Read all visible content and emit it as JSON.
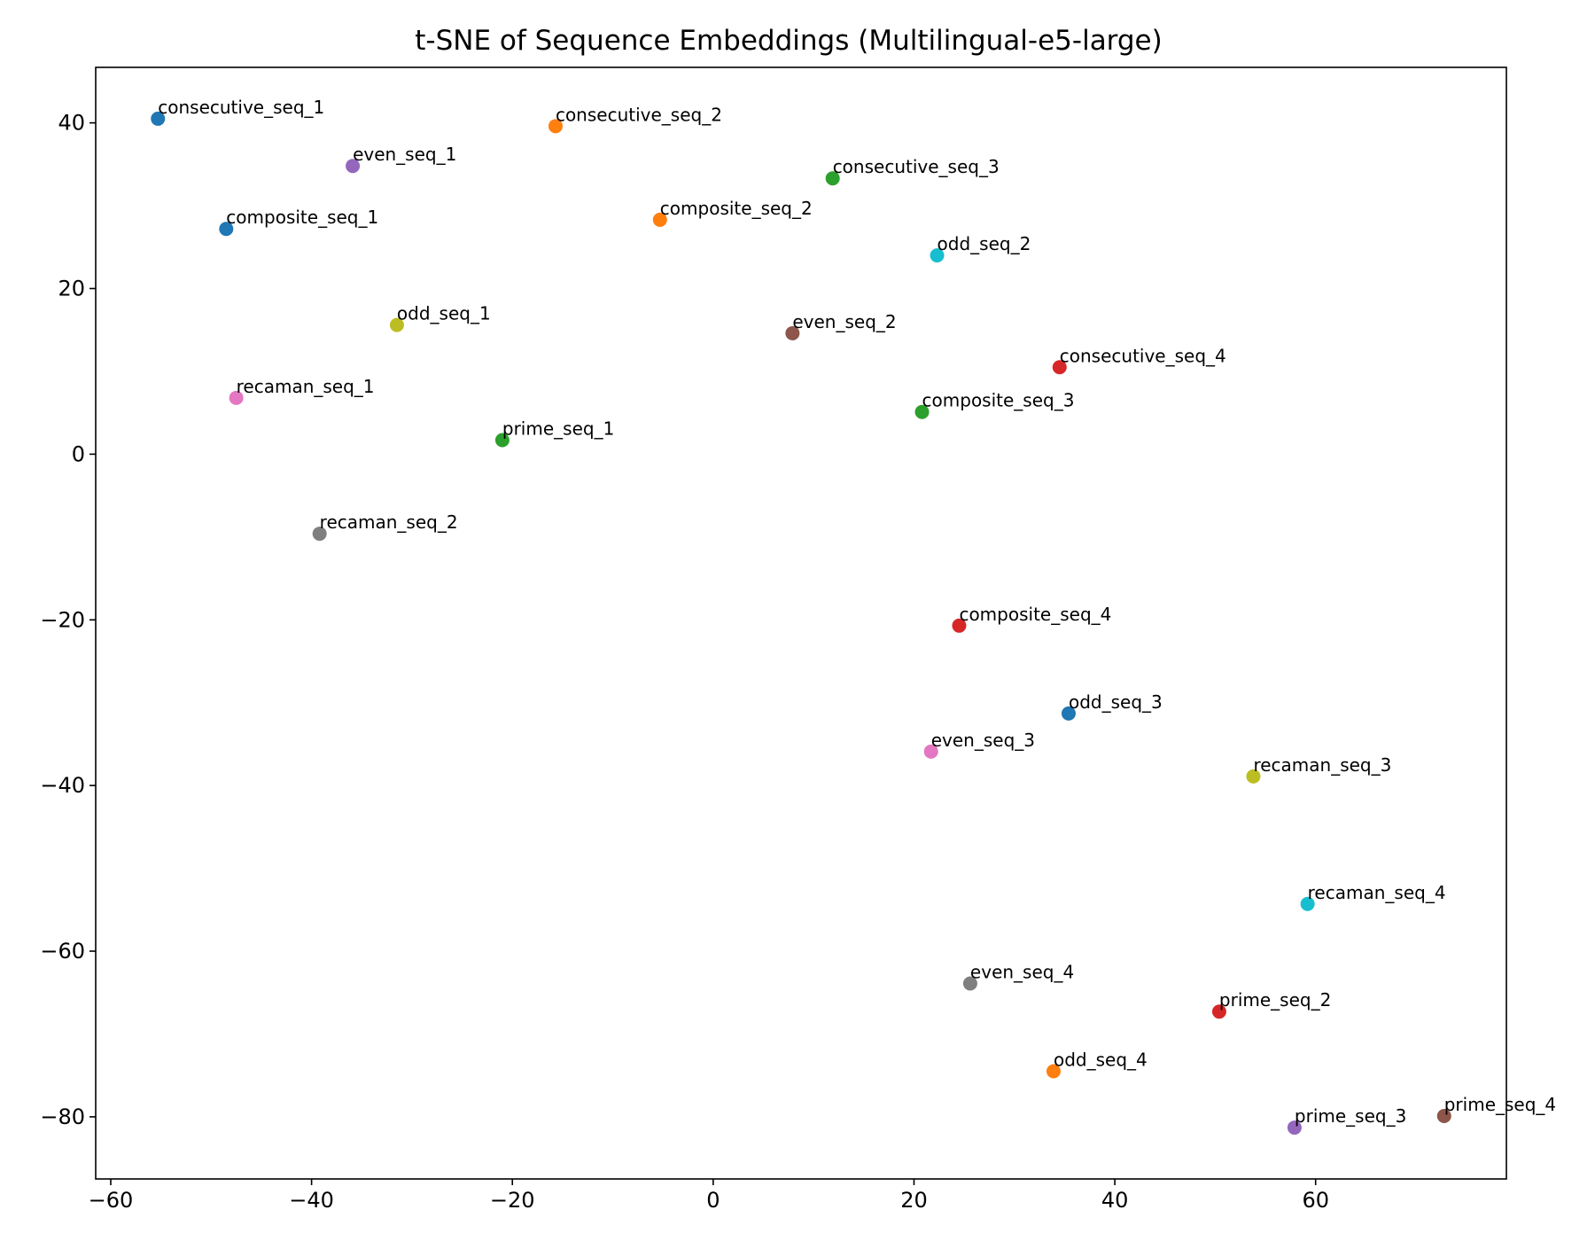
{
  "chart_data": {
    "type": "scatter",
    "title": "t-SNE of Sequence Embeddings (Multilingual-e5-large)",
    "xlabel": "",
    "ylabel": "",
    "xlim": [
      -61.5,
      79
    ],
    "ylim": [
      -87.5,
      46.7
    ],
    "xticks": [
      -60,
      -40,
      -20,
      0,
      20,
      40,
      60
    ],
    "yticks": [
      40,
      20,
      0,
      -20,
      -40,
      -60,
      -80
    ],
    "xtick_labels": [
      "−60",
      "−40",
      "−20",
      "0",
      "20",
      "40",
      "60"
    ],
    "ytick_labels": [
      "40",
      "20",
      "0",
      "−20",
      "−40",
      "−60",
      "−80"
    ],
    "grid": false,
    "legend": "none",
    "points": [
      {
        "label": "consecutive_seq_1",
        "x": -55.3,
        "y": 40.5,
        "color": "#1f77b4"
      },
      {
        "label": "consecutive_seq_2",
        "x": -15.7,
        "y": 39.6,
        "color": "#ff7f0e"
      },
      {
        "label": "even_seq_1",
        "x": -35.9,
        "y": 34.8,
        "color": "#9467bd"
      },
      {
        "label": "consecutive_seq_3",
        "x": 11.9,
        "y": 33.3,
        "color": "#2ca02c"
      },
      {
        "label": "composite_seq_1",
        "x": -48.5,
        "y": 27.2,
        "color": "#1f77b4"
      },
      {
        "label": "composite_seq_2",
        "x": -5.3,
        "y": 28.3,
        "color": "#ff7f0e"
      },
      {
        "label": "odd_seq_2",
        "x": 22.3,
        "y": 24.0,
        "color": "#17becf"
      },
      {
        "label": "odd_seq_1",
        "x": -31.5,
        "y": 15.6,
        "color": "#bcbd22"
      },
      {
        "label": "even_seq_2",
        "x": 7.9,
        "y": 14.6,
        "color": "#8c564b"
      },
      {
        "label": "consecutive_seq_4",
        "x": 34.5,
        "y": 10.5,
        "color": "#d62728"
      },
      {
        "label": "recaman_seq_1",
        "x": -47.5,
        "y": 6.8,
        "color": "#e377c2"
      },
      {
        "label": "composite_seq_3",
        "x": 20.8,
        "y": 5.1,
        "color": "#2ca02c"
      },
      {
        "label": "prime_seq_1",
        "x": -21.0,
        "y": 1.7,
        "color": "#2ca02c"
      },
      {
        "label": "recaman_seq_2",
        "x": -39.2,
        "y": -9.6,
        "color": "#7f7f7f"
      },
      {
        "label": "composite_seq_4",
        "x": 24.5,
        "y": -20.7,
        "color": "#d62728"
      },
      {
        "label": "odd_seq_3",
        "x": 35.4,
        "y": -31.3,
        "color": "#1f77b4"
      },
      {
        "label": "even_seq_3",
        "x": 21.7,
        "y": -35.9,
        "color": "#e377c2"
      },
      {
        "label": "recaman_seq_3",
        "x": 53.8,
        "y": -38.9,
        "color": "#bcbd22"
      },
      {
        "label": "recaman_seq_4",
        "x": 59.2,
        "y": -54.3,
        "color": "#17becf"
      },
      {
        "label": "even_seq_4",
        "x": 25.6,
        "y": -63.9,
        "color": "#7f7f7f"
      },
      {
        "label": "prime_seq_2",
        "x": 50.4,
        "y": -67.3,
        "color": "#d62728"
      },
      {
        "label": "odd_seq_4",
        "x": 33.9,
        "y": -74.5,
        "color": "#ff7f0e"
      },
      {
        "label": "prime_seq_3",
        "x": 57.9,
        "y": -81.3,
        "color": "#9467bd"
      },
      {
        "label": "prime_seq_4",
        "x": 72.8,
        "y": -79.9,
        "color": "#8c564b"
      }
    ]
  }
}
